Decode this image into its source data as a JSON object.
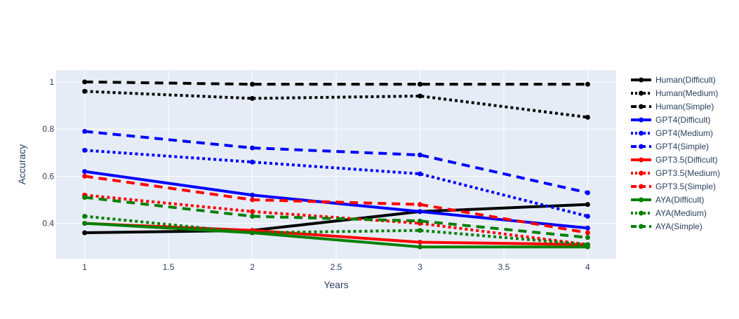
{
  "chart_data": {
    "type": "line",
    "title": "",
    "xlabel": "Years",
    "ylabel": "Accuracy",
    "x": [
      1,
      2,
      3,
      4
    ],
    "xlim": [
      0.83,
      4.17
    ],
    "ylim": [
      0.25,
      1.05
    ],
    "xticks": [
      1,
      1.5,
      2,
      2.5,
      3,
      3.5,
      4
    ],
    "xtick_labels": [
      "1",
      "1.5",
      "2",
      "2.5",
      "3",
      "3.5",
      "4"
    ],
    "yticks": [
      0.4,
      0.6,
      0.8,
      1
    ],
    "ytick_labels": [
      "0.4",
      "0.6",
      "0.8",
      "1"
    ],
    "grid": true,
    "legend_position": "right",
    "plot_background": "#e5ecf6",
    "series": [
      {
        "name": "Human(Difficult)",
        "color": "#000000",
        "dash": "solid",
        "values": [
          0.36,
          0.37,
          0.45,
          0.48
        ]
      },
      {
        "name": "Human(Medium)",
        "color": "#000000",
        "dash": "dot",
        "values": [
          0.96,
          0.93,
          0.94,
          0.85
        ]
      },
      {
        "name": "Human(Simple)",
        "color": "#000000",
        "dash": "dash",
        "values": [
          1.0,
          0.99,
          0.99,
          0.99
        ]
      },
      {
        "name": "GPT4(Difficult)",
        "color": "#0000ff",
        "dash": "solid",
        "values": [
          0.62,
          0.52,
          0.45,
          0.38
        ]
      },
      {
        "name": "GPT4(Medium)",
        "color": "#0000ff",
        "dash": "dot",
        "values": [
          0.71,
          0.66,
          0.61,
          0.43
        ]
      },
      {
        "name": "GPT4(Simple)",
        "color": "#0000ff",
        "dash": "dash",
        "values": [
          0.79,
          0.72,
          0.69,
          0.53
        ]
      },
      {
        "name": "GPT3.5(Difficult)",
        "color": "#ff0000",
        "dash": "solid",
        "values": [
          0.4,
          0.37,
          0.32,
          0.31
        ]
      },
      {
        "name": "GPT3.5(Medium)",
        "color": "#ff0000",
        "dash": "dot",
        "values": [
          0.52,
          0.45,
          0.4,
          0.31
        ]
      },
      {
        "name": "GPT3.5(Simple)",
        "color": "#ff0000",
        "dash": "dash",
        "values": [
          0.6,
          0.5,
          0.48,
          0.36
        ]
      },
      {
        "name": "AYA(Difficult)",
        "color": "#008000",
        "dash": "solid",
        "values": [
          0.4,
          0.36,
          0.3,
          0.3
        ]
      },
      {
        "name": "AYA(Medium)",
        "color": "#008000",
        "dash": "dot",
        "values": [
          0.43,
          0.36,
          0.37,
          0.31
        ]
      },
      {
        "name": "AYA(Simple)",
        "color": "#008000",
        "dash": "dash",
        "values": [
          0.51,
          0.43,
          0.41,
          0.34
        ]
      }
    ]
  }
}
